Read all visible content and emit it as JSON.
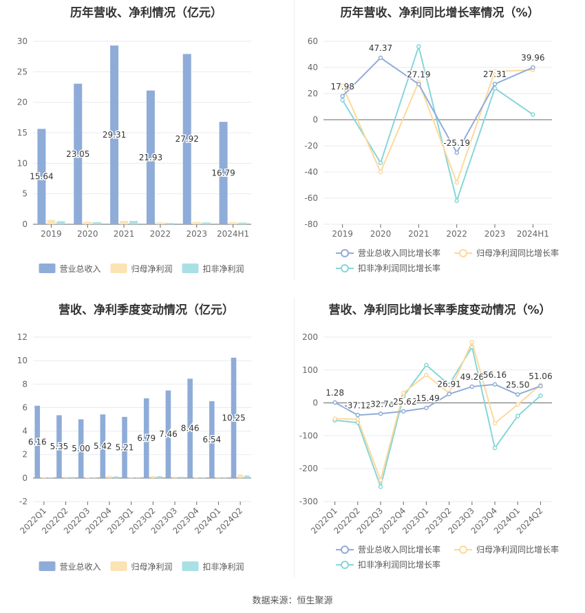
{
  "source_label": "数据来源：恒生聚源",
  "colors": {
    "revenue": "#8facd8",
    "net_profit": "#fce3b4",
    "deducted_profit": "#a9e0e4",
    "revenue_line": "#8facd8",
    "net_line": "#fdd99a",
    "deducted_line": "#86d6d8",
    "axis": "#888888",
    "grid": "#e8eaef"
  },
  "chart_data": [
    {
      "type": "bar",
      "title": "历年营收、净利情况（亿元）",
      "categories": [
        "2019",
        "2020",
        "2021",
        "2022",
        "2023",
        "2024H1"
      ],
      "ylim": [
        0,
        30
      ],
      "yticks": [
        0,
        5,
        10,
        15,
        20,
        25,
        30
      ],
      "series": [
        {
          "name": "营业总收入",
          "values": [
            15.64,
            23.05,
            29.31,
            21.93,
            27.92,
            16.79
          ],
          "labels": [
            "15.64",
            "23.05",
            "29.31",
            "21.93",
            "27.92",
            "16.79"
          ]
        },
        {
          "name": "归母净利润",
          "values": [
            0.72,
            0.4,
            0.55,
            0.3,
            0.4,
            0.35
          ]
        },
        {
          "name": "扣非净利润",
          "values": [
            0.5,
            0.35,
            0.55,
            0.22,
            0.3,
            0.28
          ]
        }
      ],
      "legend": "bottom"
    },
    {
      "type": "line",
      "title": "历年营收、净利同比增长率情况（%）",
      "categories": [
        "2019",
        "2020",
        "2021",
        "2022",
        "2023",
        "2024H1"
      ],
      "ylim": [
        -80,
        60
      ],
      "yticks": [
        -80,
        -60,
        -40,
        -20,
        0,
        20,
        40,
        60
      ],
      "series": [
        {
          "name": "营业总收入同比增长率",
          "values": [
            17.98,
            47.37,
            27.19,
            -25.19,
            27.31,
            39.96
          ],
          "labels": [
            "17.98",
            "47.37",
            "27.19",
            "-25.19",
            "27.31",
            "39.96"
          ]
        },
        {
          "name": "归母净利润同比增长率",
          "values": [
            26,
            -40,
            29,
            -48,
            37,
            38
          ]
        },
        {
          "name": "扣非净利润同比增长率",
          "values": [
            15,
            -33,
            56,
            -62,
            24,
            4
          ]
        }
      ],
      "legend": "bottom"
    },
    {
      "type": "bar",
      "title": "营收、净利季度变动情况（亿元）",
      "categories": [
        "2022Q1",
        "2022Q2",
        "2022Q3",
        "2022Q4",
        "2023Q1",
        "2023Q2",
        "2023Q3",
        "2023Q4",
        "2024Q1",
        "2024Q2"
      ],
      "ylim": [
        -2,
        12
      ],
      "yticks": [
        -2,
        0,
        2,
        4,
        6,
        8,
        10,
        12
      ],
      "series": [
        {
          "name": "营业总收入",
          "values": [
            6.16,
            5.35,
            5.0,
            5.42,
            5.21,
            6.79,
            7.46,
            8.46,
            6.54,
            10.25
          ],
          "labels": [
            "6.16",
            "5.35",
            "5.00",
            "5.42",
            "5.21",
            "6.79",
            "7.46",
            "8.46",
            "6.54",
            "10.25"
          ]
        },
        {
          "name": "归母净利润",
          "values": [
            0.05,
            0.1,
            0.02,
            0.18,
            0.08,
            0.18,
            0.12,
            0.05,
            0.08,
            0.3
          ]
        },
        {
          "name": "扣非净利润",
          "values": [
            0.04,
            0.08,
            0.03,
            0.14,
            0.06,
            0.16,
            0.1,
            0.04,
            0.06,
            0.22
          ]
        }
      ],
      "legend": "bottom"
    },
    {
      "type": "line",
      "title": "营收、净利同比增长率季度变动情况（%）",
      "categories": [
        "2022Q1",
        "2022Q2",
        "2022Q3",
        "2022Q4",
        "2023Q1",
        "2023Q2",
        "2023Q3",
        "2023Q4",
        "2024Q1",
        "2024Q2"
      ],
      "ylim": [
        -300,
        200
      ],
      "yticks": [
        -300,
        -200,
        -100,
        0,
        100,
        200
      ],
      "series": [
        {
          "name": "营业总收入同比增长率",
          "values": [
            1.28,
            -37.12,
            -32.78,
            -25.62,
            -15.49,
            26.91,
            49.26,
            56.16,
            25.5,
            51.06
          ],
          "labels": [
            "1.28",
            "-37.12",
            "-32.78",
            "-25.62",
            "-15.49",
            "26.91",
            "49.26",
            "56.16",
            "25.50",
            "51.06"
          ]
        },
        {
          "name": "归母净利润同比增长率",
          "values": [
            -48,
            -50,
            -235,
            30,
            85,
            30,
            185,
            -62,
            -5,
            55
          ]
        },
        {
          "name": "扣非净利润同比增长率",
          "values": [
            -53,
            -60,
            -255,
            20,
            115,
            55,
            170,
            -137,
            -40,
            22
          ]
        }
      ],
      "legend": "bottom"
    }
  ]
}
